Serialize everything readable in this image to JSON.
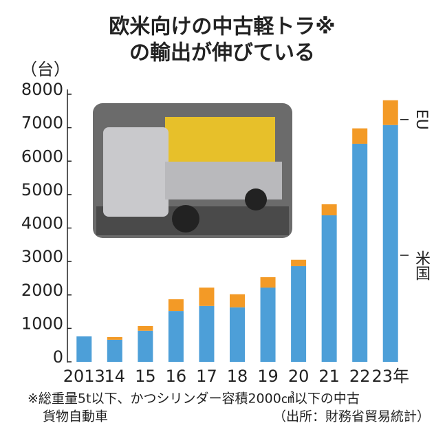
{
  "chart_data": {
    "type": "stacked-bar",
    "title": [
      "欧米向けの中古軽トラ※",
      "の輸出が伸びている"
    ],
    "y_label": "（台）",
    "categories": [
      "2013",
      "14",
      "15",
      "16",
      "17",
      "18",
      "19",
      "20",
      "21",
      "22",
      "23年"
    ],
    "series": [
      {
        "name": "米国",
        "color": "#4d9fd8",
        "values": [
          760,
          660,
          930,
          1520,
          1670,
          1630,
          2220,
          2860,
          4380,
          6520,
          7080
        ]
      },
      {
        "name": "EU",
        "color": "#f39a26",
        "values": [
          0,
          80,
          140,
          350,
          550,
          390,
          310,
          190,
          330,
          460,
          740
        ]
      }
    ],
    "ylim": [
      0,
      8000
    ],
    "yticks": [
      0,
      1000,
      2000,
      3000,
      4000,
      5000,
      6000,
      7000,
      8000
    ],
    "footnote": [
      "※総重量5t以下、かつシリンダー容積2000㎤以下の中古",
      "貨物自動車"
    ],
    "source": "（出所：財務省貿易統計）"
  }
}
